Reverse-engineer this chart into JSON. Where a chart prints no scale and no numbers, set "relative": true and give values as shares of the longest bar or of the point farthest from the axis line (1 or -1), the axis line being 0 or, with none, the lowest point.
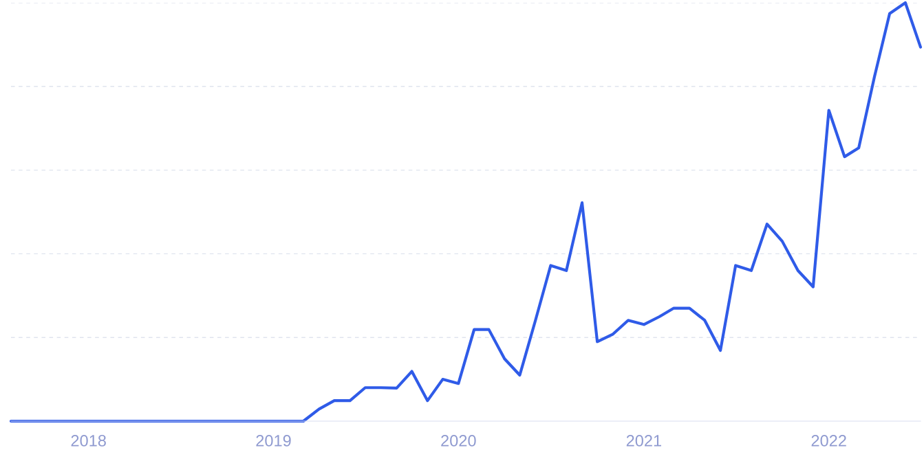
{
  "chart_data": {
    "type": "line",
    "relative": true,
    "x": [
      "2017-08",
      "2017-09",
      "2017-10",
      "2017-11",
      "2017-12",
      "2018-01",
      "2018-02",
      "2018-03",
      "2018-04",
      "2018-05",
      "2018-06",
      "2018-07",
      "2018-08",
      "2018-09",
      "2018-10",
      "2018-11",
      "2018-12",
      "2019-01",
      "2019-02",
      "2019-03",
      "2019-04",
      "2019-05",
      "2019-06",
      "2019-07",
      "2019-08",
      "2019-09",
      "2019-10",
      "2019-11",
      "2019-12",
      "2020-01",
      "2020-02",
      "2020-03",
      "2020-04",
      "2020-05",
      "2020-06",
      "2020-07",
      "2020-08",
      "2020-09",
      "2020-10",
      "2020-11",
      "2020-12",
      "2021-01",
      "2021-02",
      "2021-03",
      "2021-04",
      "2021-05",
      "2021-06",
      "2021-07",
      "2021-08",
      "2021-09",
      "2021-10",
      "2021-11",
      "2021-12",
      "2022-01",
      "2022-02",
      "2022-03",
      "2022-04",
      "2022-05",
      "2022-06",
      "2022-07"
    ],
    "series": [
      {
        "color": "#2f5be8",
        "values": [
          0,
          0,
          0,
          0,
          0,
          0,
          0,
          0,
          0,
          0,
          0,
          0,
          0,
          0,
          0,
          0,
          0,
          0,
          0,
          0,
          0.029,
          0.049,
          0.049,
          0.08,
          0.08,
          0.079,
          0.119,
          0.049,
          0.1,
          0.09,
          0.219,
          0.219,
          0.149,
          0.11,
          0.241,
          0.372,
          0.36,
          0.522,
          0.19,
          0.208,
          0.241,
          0.231,
          0.25,
          0.27,
          0.27,
          0.241,
          0.169,
          0.372,
          0.36,
          0.471,
          0.43,
          0.36,
          0.321,
          0.743,
          0.632,
          0.653,
          0.823,
          0.974,
          1.0,
          0.894
        ]
      }
    ],
    "xlim": [
      "2017-08",
      "2022-07"
    ],
    "xticks": [
      {
        "value": "2018-01",
        "label": "2018"
      },
      {
        "value": "2019-01",
        "label": "2019"
      },
      {
        "value": "2020-01",
        "label": "2020"
      },
      {
        "value": "2021-01",
        "label": "2021"
      },
      {
        "value": "2022-01",
        "label": "2022"
      }
    ],
    "grid": "y",
    "marker": "none",
    "line_style": "solid"
  }
}
